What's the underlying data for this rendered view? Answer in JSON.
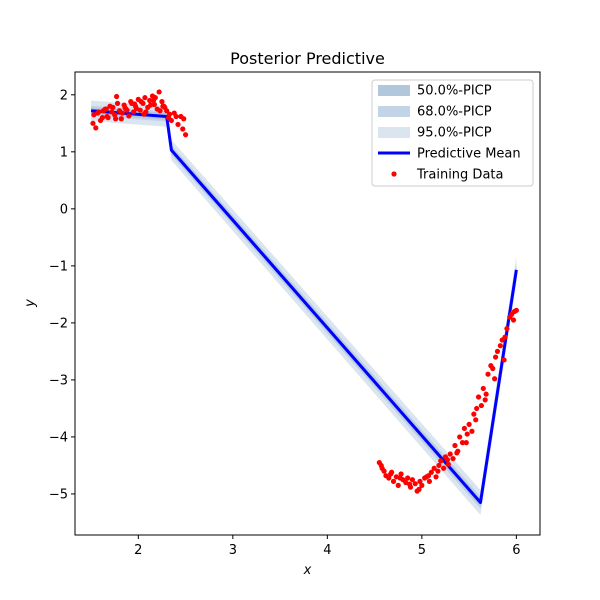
{
  "chart_data": {
    "type": "line",
    "title": "Posterior Predictive",
    "xlabel": "x",
    "ylabel": "y",
    "xlim": [
      1.33,
      6.25
    ],
    "ylim": [
      -5.72,
      2.4
    ],
    "xticks": [
      "2",
      "3",
      "4",
      "5",
      "6"
    ],
    "yticks": [
      "2",
      "1",
      "0",
      "−1",
      "−2",
      "−3",
      "−4",
      "−5"
    ],
    "xtick_values": [
      2,
      3,
      4,
      5,
      6
    ],
    "ytick_values": [
      2,
      1,
      0,
      -1,
      -2,
      -3,
      -4,
      -5
    ],
    "grid": false,
    "legend_placement": "top-right",
    "colors": {
      "pi50": "#b3c7dc",
      "pi68": "#c3d4e6",
      "pi95": "#dbe5f0",
      "mean": "#0000ff",
      "data": "#ff0000"
    },
    "legend": [
      {
        "label": "50.0%-PICP",
        "kind": "band50"
      },
      {
        "label": "68.0%-PICP",
        "kind": "band68"
      },
      {
        "label": "95.0%-PICP",
        "kind": "band95"
      },
      {
        "label": "Predictive Mean",
        "kind": "line"
      },
      {
        "label": "Training Data",
        "kind": "scatter"
      }
    ],
    "mean": {
      "x": [
        1.5,
        2.3,
        2.35,
        5.62,
        6.0
      ],
      "y": [
        1.72,
        1.62,
        1.03,
        -5.15,
        -1.07
      ]
    },
    "bands": {
      "x": [
        1.5,
        2.3,
        2.35,
        5.62,
        6.0
      ],
      "half_width_50": [
        0.06,
        0.06,
        0.06,
        0.07,
        0.08
      ],
      "half_width_68": [
        0.09,
        0.09,
        0.09,
        0.11,
        0.12
      ],
      "half_width_95": [
        0.18,
        0.18,
        0.18,
        0.22,
        0.24
      ]
    },
    "training_data": {
      "x": [
        1.52,
        1.55,
        1.57,
        1.6,
        1.62,
        1.65,
        1.67,
        1.7,
        1.72,
        1.75,
        1.77,
        1.8,
        1.82,
        1.85,
        1.87,
        1.9,
        1.92,
        1.95,
        1.97,
        2.0,
        2.02,
        2.05,
        2.07,
        2.1,
        2.12,
        2.15,
        2.17,
        2.2,
        2.22,
        2.25,
        2.27,
        2.3,
        2.32,
        2.35,
        2.38,
        2.4,
        2.42,
        2.45,
        2.47,
        2.5,
        1.53,
        1.58,
        1.63,
        1.68,
        1.73,
        1.78,
        1.83,
        1.88,
        1.93,
        1.98,
        2.03,
        2.08,
        2.13,
        2.18,
        2.23,
        2.28,
        2.33,
        2.48,
        1.66,
        1.76,
        1.86,
        1.96,
        2.06,
        2.16,
        2.26,
        4.55,
        4.58,
        4.6,
        4.62,
        4.65,
        4.68,
        4.7,
        4.73,
        4.75,
        4.78,
        4.8,
        4.83,
        4.85,
        4.88,
        4.9,
        4.93,
        4.95,
        4.98,
        5.0,
        5.03,
        5.05,
        5.08,
        5.1,
        5.13,
        5.15,
        5.18,
        5.2,
        5.23,
        5.25,
        5.28,
        5.3,
        5.33,
        5.35,
        5.38,
        5.4,
        5.43,
        5.45,
        5.48,
        5.5,
        5.53,
        5.55,
        5.58,
        5.6,
        5.63,
        5.65,
        5.68,
        5.7,
        5.73,
        5.75,
        5.78,
        5.8,
        5.83,
        5.85,
        5.88,
        5.9,
        5.93,
        5.95,
        5.98,
        6.0,
        4.57,
        4.67,
        4.77,
        4.87,
        4.97,
        5.07,
        5.17,
        5.27,
        5.37,
        5.47,
        5.57,
        5.67,
        5.77,
        5.87,
        5.97
      ],
      "y": [
        1.5,
        1.42,
        1.68,
        1.55,
        1.6,
        1.75,
        1.62,
        1.8,
        1.7,
        1.65,
        1.97,
        1.72,
        1.58,
        1.82,
        1.75,
        1.63,
        1.88,
        1.7,
        1.8,
        1.92,
        1.73,
        1.85,
        1.95,
        1.78,
        1.9,
        1.98,
        1.83,
        1.75,
        2.05,
        1.88,
        1.8,
        1.72,
        1.6,
        1.55,
        1.68,
        1.62,
        1.48,
        1.62,
        1.4,
        1.3,
        1.65,
        1.7,
        1.72,
        1.6,
        1.78,
        1.85,
        1.68,
        1.73,
        1.85,
        1.76,
        1.88,
        1.7,
        1.82,
        1.95,
        1.72,
        1.78,
        1.66,
        1.58,
        1.75,
        1.58,
        1.77,
        1.84,
        1.66,
        1.9,
        1.8,
        -4.45,
        -4.55,
        -4.6,
        -4.68,
        -4.72,
        -4.62,
        -4.78,
        -4.7,
        -4.85,
        -4.65,
        -4.75,
        -4.8,
        -4.72,
        -4.88,
        -4.75,
        -4.82,
        -4.95,
        -4.78,
        -4.85,
        -4.72,
        -4.7,
        -4.78,
        -4.62,
        -4.55,
        -4.7,
        -4.5,
        -4.42,
        -4.55,
        -4.35,
        -4.48,
        -4.3,
        -4.38,
        -4.15,
        -4.25,
        -4.0,
        -4.1,
        -3.85,
        -3.95,
        -3.78,
        -3.9,
        -3.6,
        -3.5,
        -3.3,
        -3.45,
        -3.15,
        -3.25,
        -2.9,
        -2.75,
        -2.8,
        -2.6,
        -2.5,
        -2.4,
        -2.3,
        -2.25,
        -2.1,
        -1.9,
        -1.85,
        -1.8,
        -1.78,
        -4.5,
        -4.65,
        -4.72,
        -4.83,
        -4.92,
        -4.68,
        -4.6,
        -4.4,
        -4.28,
        -4.1,
        -3.7,
        -3.35,
        -2.98,
        -2.65,
        -1.95
      ]
    }
  }
}
